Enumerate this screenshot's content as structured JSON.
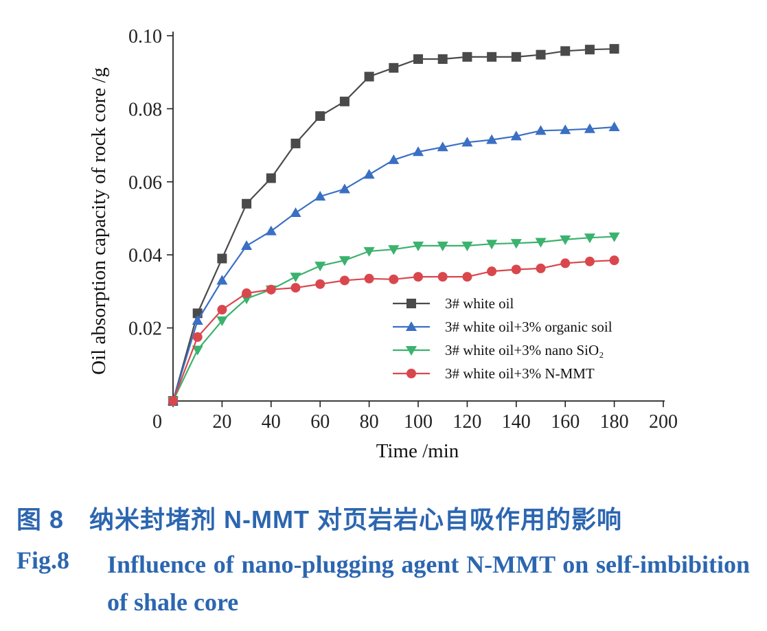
{
  "chart_data": {
    "type": "line",
    "xlabel": "Time /min",
    "ylabel": "Oil absorption capacity of rock core /g",
    "xlim": [
      0,
      200
    ],
    "ylim": [
      0,
      0.1
    ],
    "x_ticks": [
      "0",
      "20",
      "40",
      "60",
      "80",
      "100",
      "120",
      "140",
      "160",
      "180",
      "200"
    ],
    "y_ticks": [
      "0.02",
      "0.04",
      "0.06",
      "0.08",
      "0.10"
    ],
    "legend_position": "center-right",
    "grid": false,
    "series": [
      {
        "name": "3# white oil",
        "color": "#4a4a4a",
        "marker": "square",
        "x": [
          0,
          10,
          20,
          30,
          40,
          50,
          60,
          70,
          80,
          90,
          100,
          110,
          120,
          130,
          140,
          150,
          160,
          170,
          180
        ],
        "y": [
          0,
          0.024,
          0.039,
          0.054,
          0.061,
          0.0705,
          0.078,
          0.082,
          0.0888,
          0.0912,
          0.0936,
          0.0936,
          0.0942,
          0.0942,
          0.0942,
          0.0948,
          0.0958,
          0.0962,
          0.0964
        ]
      },
      {
        "name": "3# white oil+3% organic soil",
        "color": "#3a6fc4",
        "marker": "triangle-up",
        "x": [
          0,
          10,
          20,
          30,
          40,
          50,
          60,
          70,
          80,
          90,
          100,
          110,
          120,
          130,
          140,
          150,
          160,
          170,
          180
        ],
        "y": [
          0,
          0.022,
          0.033,
          0.0425,
          0.0465,
          0.0515,
          0.056,
          0.058,
          0.062,
          0.066,
          0.0682,
          0.0695,
          0.0708,
          0.0715,
          0.0725,
          0.074,
          0.0742,
          0.0745,
          0.075
        ]
      },
      {
        "name": "3# white oil+3% nano SiO₂",
        "color": "#3bb26e",
        "marker": "triangle-down",
        "x": [
          0,
          10,
          20,
          30,
          40,
          50,
          60,
          70,
          80,
          90,
          100,
          110,
          120,
          130,
          140,
          150,
          160,
          170,
          180
        ],
        "y": [
          0,
          0.014,
          0.022,
          0.028,
          0.0305,
          0.034,
          0.037,
          0.0385,
          0.041,
          0.0415,
          0.0425,
          0.0425,
          0.0425,
          0.043,
          0.0432,
          0.0435,
          0.0442,
          0.0447,
          0.045
        ]
      },
      {
        "name": "3# white oil+3% N-MMT",
        "color": "#d9474d",
        "marker": "circle",
        "x": [
          0,
          10,
          20,
          30,
          40,
          50,
          60,
          70,
          80,
          90,
          100,
          110,
          120,
          130,
          140,
          150,
          160,
          170,
          180
        ],
        "y": [
          0,
          0.0175,
          0.025,
          0.0295,
          0.0305,
          0.031,
          0.032,
          0.033,
          0.0335,
          0.0333,
          0.034,
          0.034,
          0.034,
          0.0355,
          0.036,
          0.0363,
          0.0377,
          0.0382,
          0.0385
        ]
      }
    ]
  },
  "caption": {
    "cn": "图 8　纳米封堵剂 N-MMT 对页岩岩心自吸作用的影响",
    "en_label": "Fig.8",
    "en": "Influence of nano-plugging agent N-MMT on self-imbibition of shale core"
  }
}
